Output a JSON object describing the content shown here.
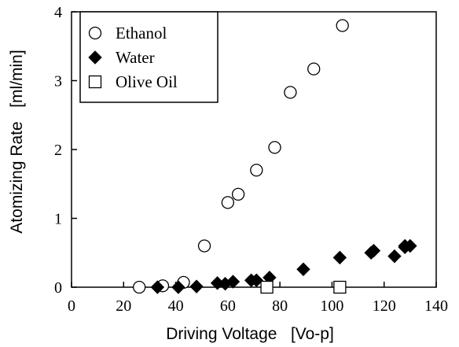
{
  "chart_data": {
    "type": "scatter",
    "xlabel": "Driving Voltage   [Vo-p]",
    "ylabel": "Atomizing Rate   [ml/min]",
    "xlim": [
      0,
      140
    ],
    "ylim": [
      0,
      4
    ],
    "xticks": [
      0,
      20,
      40,
      60,
      80,
      100,
      120,
      140
    ],
    "yticks": [
      0,
      1,
      2,
      3,
      4
    ],
    "grid": false,
    "legend_position": "top-left",
    "series": [
      {
        "name": "Ethanol",
        "marker": "circle",
        "filled": false,
        "x": [
          26,
          35,
          43,
          51,
          60,
          64,
          71,
          78,
          84,
          93,
          104
        ],
        "y": [
          0,
          0.02,
          0.07,
          0.6,
          1.23,
          1.35,
          1.7,
          2.03,
          2.83,
          3.17,
          3.8
        ]
      },
      {
        "name": "Water",
        "marker": "diamond",
        "filled": true,
        "x": [
          33,
          41,
          48,
          56,
          59,
          62,
          69,
          71,
          76,
          89,
          103,
          115,
          116,
          124,
          128,
          128,
          130
        ],
        "y": [
          0,
          0,
          0.01,
          0.06,
          0.05,
          0.08,
          0.1,
          0.1,
          0.14,
          0.26,
          0.43,
          0.5,
          0.53,
          0.45,
          0.58,
          0.6,
          0.6
        ]
      },
      {
        "name": "Olive Oil",
        "marker": "square",
        "filled": false,
        "x": [
          75,
          103
        ],
        "y": [
          0,
          0
        ]
      }
    ]
  }
}
